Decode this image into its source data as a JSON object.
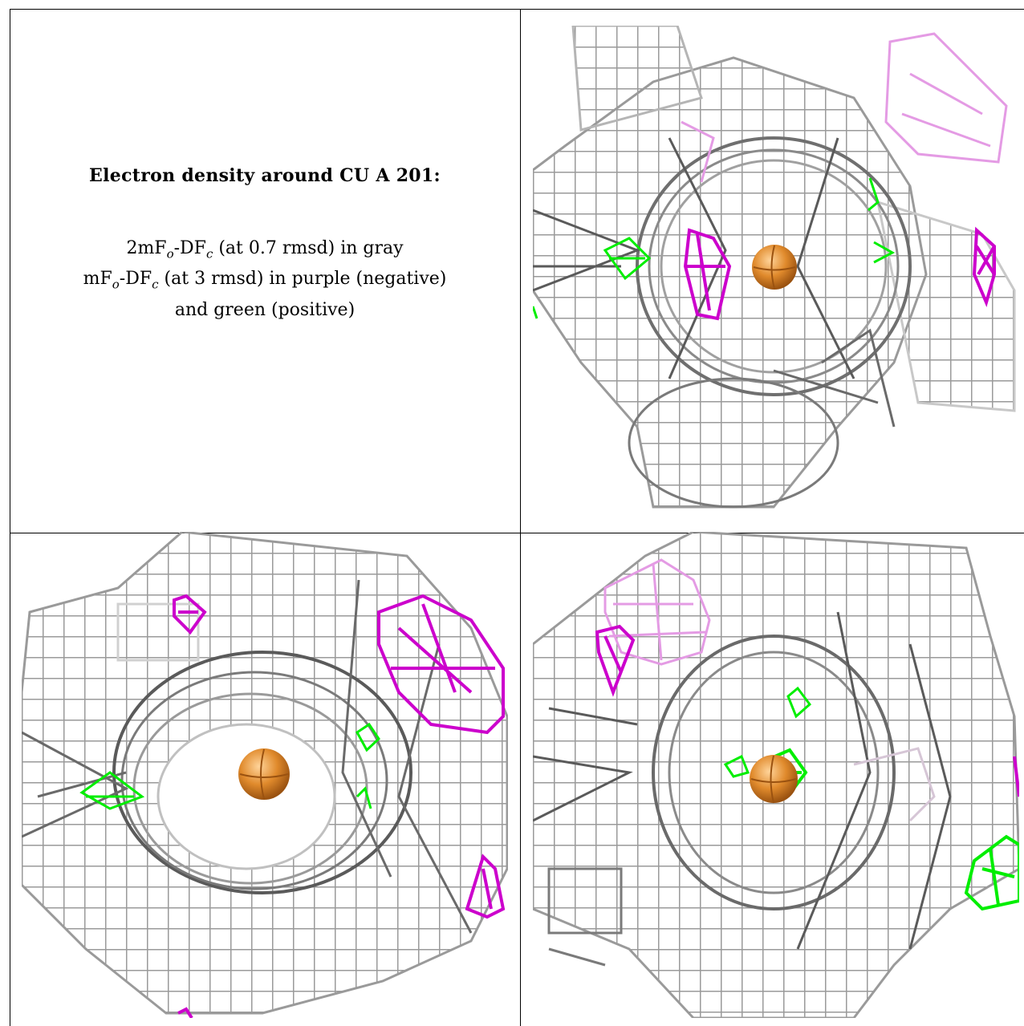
{
  "caption": {
    "title": "Electron density around CU A 201:",
    "line1_prefix": "2mF",
    "line1_sub1": "o",
    "line1_mid": "-DF",
    "line1_sub2": "c",
    "line1_suffix": " (at 0.7 rmsd) in gray",
    "line2_prefix": "mF",
    "line2_sub1": "o",
    "line2_mid": "-DF",
    "line2_sub2": "c",
    "line2_suffix": " (at 3 rmsd) in purple (negative)",
    "line3": "and green (positive)"
  },
  "colors": {
    "mesh_gray": "#8a8a8a",
    "mesh_light": "#cfcfcf",
    "mesh_dark": "#4a4a4a",
    "negative_purple": "#cc00cc",
    "negative_purple_faded": "#e49be4",
    "positive_green": "#00ee00",
    "copper_atom": "#e08a2c"
  },
  "panels": [
    {
      "name": "view-top-right",
      "atom": "copper-atom"
    },
    {
      "name": "view-bottom-left",
      "atom": "copper-atom"
    },
    {
      "name": "view-bottom-right",
      "atom": "copper-atom"
    }
  ]
}
